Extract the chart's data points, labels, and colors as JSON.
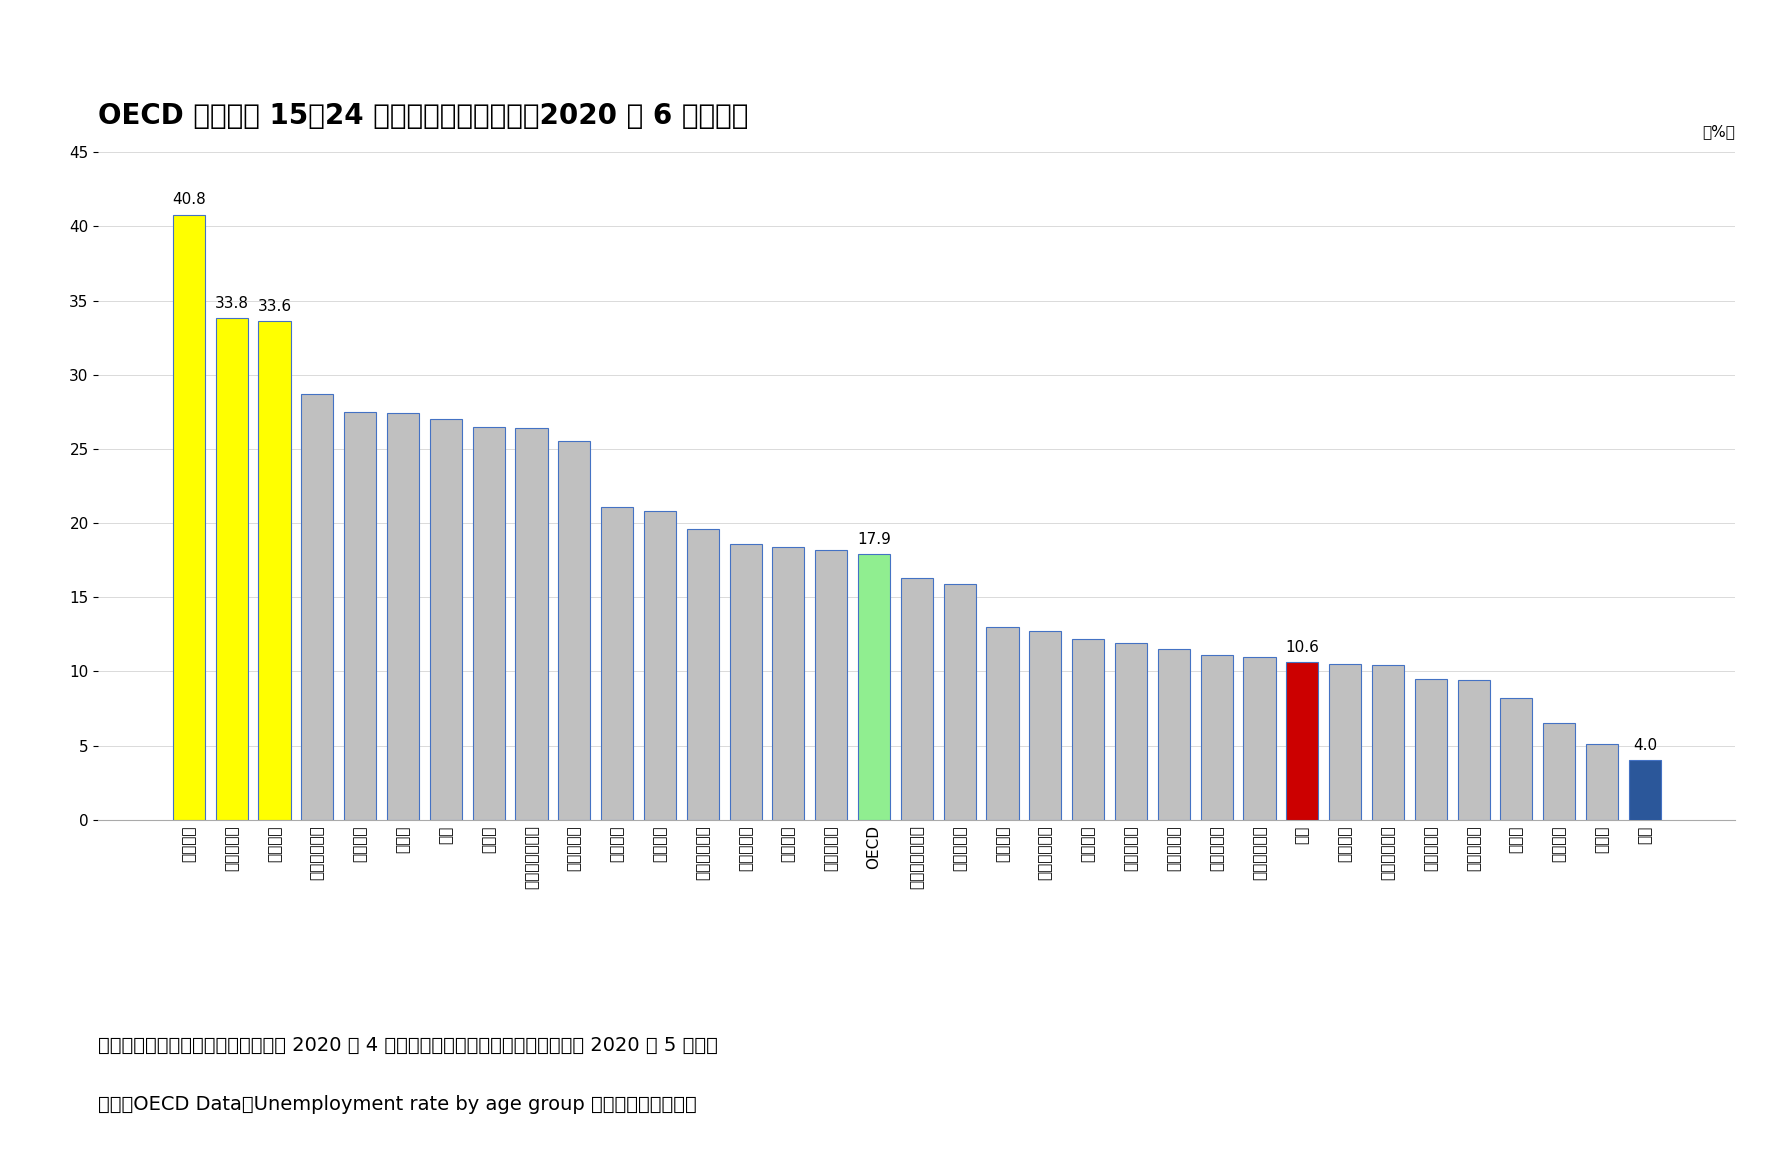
{
  "title": "OECD 加盟国の 15〜24 歳年齢階層の失業率（2020 年 6 月基準）",
  "ylabel_unit": "（%）",
  "note1": "注）ギリシャ、トルコ、イギリスは 2020 年 4 月、ハンガリー、ノルウェー、チリは 2020 年 5 月基準",
  "note2": "出所）OECD Data：Unemployment rate by age group を利用して筆者作成",
  "categories": [
    "スペイン",
    "コロンビア",
    "ギリシャ",
    "スウェーデン",
    "イタリア",
    "カナダ",
    "チリ",
    "トルコ",
    "ルクセンブルク",
    "ポルトガル",
    "フランス",
    "アメリカ",
    "フィンランド",
    "リトアニア",
    "ラトビア",
    "スロバキア",
    "OECD",
    "オーストラリア",
    "ハンガリー",
    "ベルギー",
    "アイルランド",
    "イギリス",
    "デンマーク",
    "ノルウェー",
    "スロベニア",
    "アイスランド",
    "韓国",
    "オランダ",
    "オーストリア",
    "イスランド",
    "ポーランド",
    "チェコ",
    "メキシコ",
    "ドイツ",
    "日本"
  ],
  "values": [
    40.8,
    33.8,
    33.6,
    28.7,
    27.5,
    27.4,
    27.0,
    26.5,
    26.4,
    25.5,
    21.1,
    20.8,
    19.6,
    18.6,
    18.4,
    18.2,
    17.9,
    16.3,
    15.9,
    13.0,
    12.7,
    12.2,
    11.9,
    11.5,
    11.1,
    11.0,
    10.6,
    10.5,
    10.4,
    9.5,
    9.4,
    8.2,
    6.5,
    5.1,
    4.0
  ],
  "bar_colors": [
    "#FFFF00",
    "#FFFF00",
    "#FFFF00",
    "#C0C0C0",
    "#C0C0C0",
    "#C0C0C0",
    "#C0C0C0",
    "#C0C0C0",
    "#C0C0C0",
    "#C0C0C0",
    "#C0C0C0",
    "#C0C0C0",
    "#C0C0C0",
    "#C0C0C0",
    "#C0C0C0",
    "#C0C0C0",
    "#90EE90",
    "#C0C0C0",
    "#C0C0C0",
    "#C0C0C0",
    "#C0C0C0",
    "#C0C0C0",
    "#C0C0C0",
    "#C0C0C0",
    "#C0C0C0",
    "#C0C0C0",
    "#CC0000",
    "#C0C0C0",
    "#C0C0C0",
    "#C0C0C0",
    "#C0C0C0",
    "#C0C0C0",
    "#C0C0C0",
    "#C0C0C0",
    "#2B579A"
  ],
  "edge_color": "#4472C4",
  "label_indices": [
    0,
    1,
    2,
    16,
    26,
    34
  ],
  "label_values": [
    "40.8",
    "33.8",
    "33.6",
    "17.9",
    "10.6",
    "4.0"
  ],
  "ylim": [
    0,
    45
  ],
  "yticks": [
    0,
    5,
    10,
    15,
    20,
    25,
    30,
    35,
    40,
    45
  ],
  "title_fontsize": 20,
  "tick_fontsize": 11,
  "label_fontsize": 11,
  "note_fontsize": 14,
  "background_color": "#FFFFFF"
}
